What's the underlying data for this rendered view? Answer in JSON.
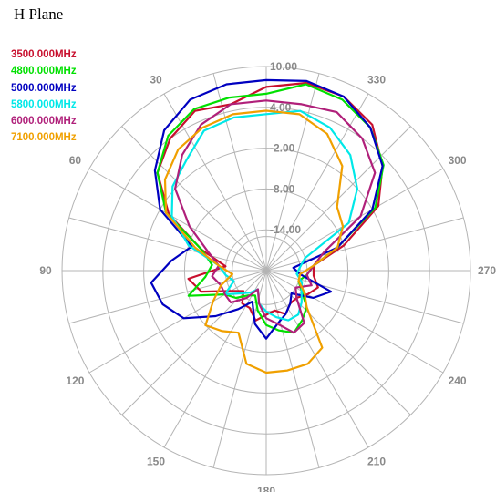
{
  "chart_data": {
    "type": "polar-line",
    "title": "H Plane",
    "radial_ticks": [
      "10.00",
      "4.00",
      "-2.00",
      "-8.00",
      "-14.00"
    ],
    "radial_values": [
      10,
      4,
      -2,
      -8,
      -14
    ],
    "r_range": [
      -20,
      10
    ],
    "angle_ticks": [
      {
        "deg": 0,
        "label": ""
      },
      {
        "deg": 30,
        "label": "330"
      },
      {
        "deg": 60,
        "label": "300"
      },
      {
        "deg": 90,
        "label": "270"
      },
      {
        "deg": 120,
        "label": "240"
      },
      {
        "deg": 150,
        "label": "210"
      },
      {
        "deg": 180,
        "label": "180"
      },
      {
        "deg": 210,
        "label": "150"
      },
      {
        "deg": 240,
        "label": "120"
      },
      {
        "deg": 270,
        "label": "90"
      },
      {
        "deg": 300,
        "label": "60"
      },
      {
        "deg": 330,
        "label": "30"
      }
    ],
    "angle_direction": "clockwise screen angle measured from top (label = 360 - angle)",
    "grid": true,
    "series": [
      {
        "name": "3500.000MHz",
        "color": "#c8102e",
        "values": [
          7,
          8.2,
          8,
          6.5,
          3,
          -1,
          -8,
          -13,
          -13,
          -12,
          -13,
          -14,
          -14,
          -13,
          -14,
          -13.5,
          -12.5,
          -14,
          -14,
          -15.5,
          -14,
          -10,
          -8.5,
          -14,
          -10,
          -3.5,
          1.5,
          4,
          5.7,
          5
        ]
      },
      {
        "name": "4800.000MHz",
        "color": "#00e000",
        "values": [
          6,
          8,
          7.5,
          6,
          3.2,
          -1.5,
          -9,
          -13,
          -14,
          -15,
          -14,
          -12,
          -11,
          -10,
          -11,
          -12,
          -14,
          -16,
          -15.5,
          -14,
          -13,
          -8,
          -11,
          -12,
          -10,
          -3,
          1.5,
          4.5,
          6,
          6
        ]
      },
      {
        "name": "5000.000MHz",
        "color": "#0000c0",
        "values": [
          8,
          8.5,
          8,
          6,
          3,
          -2,
          -9,
          -16,
          -15,
          -10,
          -12,
          -15,
          -14,
          -13,
          -12,
          -10,
          -12,
          -15,
          -13,
          -10,
          -6,
          -4,
          -3,
          -6,
          -8.5,
          -2,
          2,
          5.5,
          7.5,
          8
        ]
      },
      {
        "name": "5800.000MHz",
        "color": "#00e8e8",
        "values": [
          3,
          4,
          3,
          1,
          -2,
          -6,
          -14,
          -15,
          -15.5,
          -14.5,
          -14,
          -13,
          -12,
          -12,
          -13,
          -14,
          -15,
          -17,
          -16,
          -15,
          -13,
          -15,
          -14,
          -13,
          -8,
          -4,
          -1.5,
          0,
          2.5,
          3
        ]
      },
      {
        "name": "6000.000MHz",
        "color": "#b0207a",
        "values": [
          5,
          5,
          5.5,
          4,
          1.5,
          -4,
          -11,
          -13,
          -14,
          -13,
          -15,
          -14,
          -10.5,
          -10,
          -12,
          -13,
          -15,
          -17,
          -15,
          -13,
          -13,
          -13,
          -12,
          -13,
          -11,
          -7,
          -2,
          1,
          3.5,
          5
        ]
      },
      {
        "name": "7100.000MHz",
        "color": "#f0a000",
        "values": [
          3.5,
          3.5,
          2,
          -1,
          -6,
          -7,
          -9,
          -13,
          -15,
          -15,
          -13.5,
          -12,
          -6,
          -5,
          -5,
          -5,
          -6,
          -10,
          -9,
          -8,
          -11,
          -13,
          -15,
          -13,
          -9,
          -3,
          0,
          2,
          3,
          3.5
        ]
      }
    ]
  }
}
